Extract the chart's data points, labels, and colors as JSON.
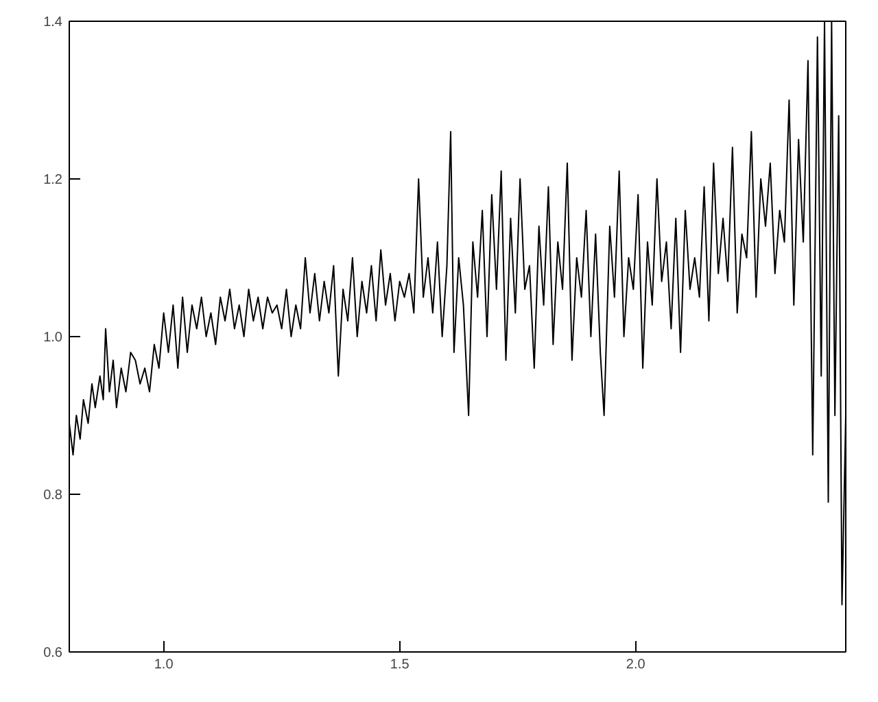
{
  "chart_data": {
    "type": "line",
    "xlim": [
      0.8,
      2.445
    ],
    "ylim": [
      0.6,
      1.4
    ],
    "xticks": [
      {
        "value": 1.0,
        "label": "1.0"
      },
      {
        "value": 1.5,
        "label": "1.5"
      },
      {
        "value": 2.0,
        "label": "2.0"
      }
    ],
    "yticks": [
      {
        "value": 0.6,
        "label": "0.6"
      },
      {
        "value": 0.8,
        "label": "0.8"
      },
      {
        "value": 1.0,
        "label": "1.0"
      },
      {
        "value": 1.2,
        "label": "1.2"
      },
      {
        "value": 1.4,
        "label": "1.4"
      }
    ],
    "grid": false,
    "marker": "none",
    "line_style": "solid",
    "series": [
      {
        "color": "#000000",
        "x": [
          0.8,
          0.808,
          0.815,
          0.823,
          0.83,
          0.84,
          0.848,
          0.855,
          0.865,
          0.872,
          0.877,
          0.885,
          0.893,
          0.9,
          0.91,
          0.92,
          0.93,
          0.94,
          0.95,
          0.96,
          0.97,
          0.98,
          0.99,
          1.0,
          1.01,
          1.02,
          1.03,
          1.04,
          1.05,
          1.06,
          1.07,
          1.08,
          1.09,
          1.1,
          1.11,
          1.12,
          1.13,
          1.14,
          1.15,
          1.16,
          1.17,
          1.18,
          1.19,
          1.2,
          1.21,
          1.22,
          1.23,
          1.24,
          1.25,
          1.26,
          1.27,
          1.28,
          1.29,
          1.3,
          1.31,
          1.32,
          1.33,
          1.34,
          1.35,
          1.36,
          1.37,
          1.38,
          1.39,
          1.4,
          1.41,
          1.42,
          1.43,
          1.44,
          1.45,
          1.46,
          1.47,
          1.48,
          1.49,
          1.5,
          1.51,
          1.52,
          1.53,
          1.54,
          1.55,
          1.56,
          1.57,
          1.58,
          1.59,
          1.6,
          1.608,
          1.615,
          1.625,
          1.635,
          1.646,
          1.655,
          1.665,
          1.675,
          1.685,
          1.695,
          1.705,
          1.715,
          1.725,
          1.735,
          1.745,
          1.755,
          1.765,
          1.775,
          1.785,
          1.795,
          1.805,
          1.815,
          1.825,
          1.835,
          1.845,
          1.855,
          1.865,
          1.875,
          1.885,
          1.895,
          1.905,
          1.915,
          1.925,
          1.933,
          1.945,
          1.955,
          1.965,
          1.975,
          1.985,
          1.995,
          2.005,
          2.015,
          2.025,
          2.035,
          2.045,
          2.055,
          2.065,
          2.075,
          2.085,
          2.095,
          2.105,
          2.115,
          2.125,
          2.135,
          2.145,
          2.155,
          2.165,
          2.175,
          2.185,
          2.195,
          2.205,
          2.215,
          2.225,
          2.235,
          2.245,
          2.255,
          2.265,
          2.275,
          2.285,
          2.295,
          2.305,
          2.315,
          2.325,
          2.335,
          2.345,
          2.355,
          2.365,
          2.375,
          2.385,
          2.393,
          2.4,
          2.408,
          2.415,
          2.422,
          2.43,
          2.437,
          2.445
        ],
        "values": [
          0.89,
          0.85,
          0.9,
          0.87,
          0.92,
          0.89,
          0.94,
          0.91,
          0.95,
          0.92,
          1.01,
          0.93,
          0.97,
          0.91,
          0.96,
          0.93,
          0.98,
          0.97,
          0.94,
          0.96,
          0.93,
          0.99,
          0.96,
          1.03,
          0.98,
          1.04,
          0.96,
          1.05,
          0.98,
          1.04,
          1.01,
          1.05,
          1.0,
          1.03,
          0.99,
          1.05,
          1.02,
          1.06,
          1.01,
          1.04,
          1.0,
          1.06,
          1.02,
          1.05,
          1.01,
          1.05,
          1.03,
          1.04,
          1.01,
          1.06,
          1.0,
          1.04,
          1.01,
          1.1,
          1.03,
          1.08,
          1.02,
          1.07,
          1.03,
          1.09,
          0.95,
          1.06,
          1.02,
          1.1,
          1.0,
          1.07,
          1.03,
          1.09,
          1.02,
          1.11,
          1.04,
          1.08,
          1.02,
          1.07,
          1.05,
          1.08,
          1.03,
          1.2,
          1.05,
          1.1,
          1.03,
          1.12,
          1.0,
          1.09,
          1.26,
          0.98,
          1.1,
          1.04,
          0.9,
          1.12,
          1.05,
          1.16,
          1.0,
          1.18,
          1.06,
          1.21,
          0.97,
          1.15,
          1.03,
          1.2,
          1.06,
          1.09,
          0.96,
          1.14,
          1.04,
          1.19,
          0.99,
          1.12,
          1.06,
          1.22,
          0.97,
          1.1,
          1.05,
          1.16,
          1.0,
          1.13,
          0.98,
          0.9,
          1.14,
          1.05,
          1.21,
          1.0,
          1.1,
          1.06,
          1.18,
          0.96,
          1.12,
          1.04,
          1.2,
          1.07,
          1.12,
          1.01,
          1.15,
          0.98,
          1.16,
          1.06,
          1.1,
          1.05,
          1.19,
          1.02,
          1.22,
          1.08,
          1.15,
          1.07,
          1.24,
          1.03,
          1.13,
          1.1,
          1.26,
          1.05,
          1.2,
          1.14,
          1.22,
          1.08,
          1.16,
          1.12,
          1.3,
          1.04,
          1.25,
          1.12,
          1.35,
          0.85,
          1.38,
          0.95,
          1.4,
          0.79,
          1.4,
          0.9,
          1.28,
          0.66,
          0.9
        ]
      }
    ]
  }
}
